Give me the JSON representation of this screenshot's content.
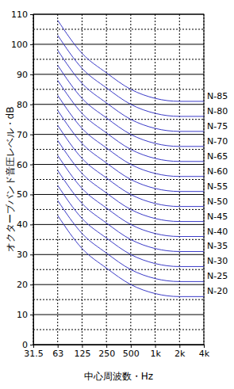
{
  "chart_data": {
    "type": "line",
    "x_label": "中心周波数・Hz",
    "y_label": "オクターブバンド音圧レベル・dB",
    "categories": [
      "31.5",
      "63",
      "125",
      "250",
      "500",
      "1k",
      "2k",
      "4k"
    ],
    "color": "#3a3ac8",
    "grid": true,
    "ylim": [
      0,
      110
    ],
    "yticks": [
      0,
      10,
      20,
      30,
      40,
      50,
      60,
      70,
      80,
      90,
      100,
      110
    ],
    "series": [
      {
        "name": "N-20",
        "values": [
          null,
          43,
          32,
          25.5,
          20,
          17,
          16,
          16
        ]
      },
      {
        "name": "N-25",
        "values": [
          null,
          48,
          37,
          30.5,
          25,
          22,
          21,
          21
        ]
      },
      {
        "name": "N-30",
        "values": [
          null,
          53,
          42,
          35.5,
          30,
          27,
          26,
          26
        ]
      },
      {
        "name": "N-35",
        "values": [
          null,
          58,
          47,
          40.5,
          35,
          32,
          31,
          31
        ]
      },
      {
        "name": "N-40",
        "values": [
          null,
          63,
          52,
          45.5,
          40,
          37,
          36,
          36
        ]
      },
      {
        "name": "N-45",
        "values": [
          null,
          68,
          57,
          50.5,
          45,
          42,
          41,
          41
        ]
      },
      {
        "name": "N-50",
        "values": [
          null,
          73,
          62,
          55.5,
          50,
          47,
          46,
          46
        ]
      },
      {
        "name": "N-55",
        "values": [
          null,
          78,
          67,
          60.5,
          55,
          52,
          51,
          51
        ]
      },
      {
        "name": "N-60",
        "values": [
          null,
          83,
          72,
          65.5,
          60,
          57,
          56,
          56
        ]
      },
      {
        "name": "N-65",
        "values": [
          null,
          88,
          77,
          70.5,
          65,
          62,
          61,
          61
        ]
      },
      {
        "name": "N-70",
        "values": [
          null,
          93,
          82,
          75.5,
          70,
          67,
          66,
          66
        ]
      },
      {
        "name": "N-75",
        "values": [
          null,
          98,
          87,
          80.5,
          75,
          72,
          71,
          71
        ]
      },
      {
        "name": "N-80",
        "values": [
          null,
          103,
          92,
          85.5,
          80,
          77,
          76,
          76
        ]
      },
      {
        "name": "N-85",
        "values": [
          null,
          108,
          97,
          90.5,
          85,
          82,
          81,
          81
        ]
      }
    ]
  }
}
